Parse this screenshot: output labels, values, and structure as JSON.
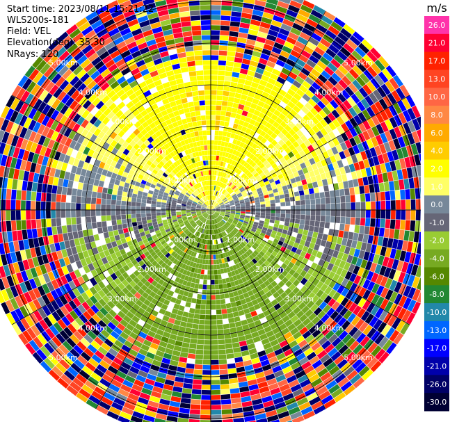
{
  "info": {
    "start_time": "Start time: 2023/08/11 15:21:22",
    "instrument": "WLS200s-181",
    "field": "Field: VEL",
    "elevation": "Elevation(deg): 35.30",
    "nrays": "NRays: 120"
  },
  "chart_data": {
    "type": "heatmap",
    "projection": "polar-ppi",
    "field": "VEL",
    "units": "m/s",
    "range_rings_km": [
      1.0,
      2.0,
      3.0,
      4.0,
      5.0
    ],
    "ring_labels": [
      "1.00km",
      "2.00km",
      "3.00km",
      "4.00km",
      "5.00km"
    ],
    "max_range_km": 5.5,
    "num_rays": 120,
    "colorbar": {
      "title": "m/s",
      "ticks": [
        "26.0",
        "21.0",
        "17.0",
        "13.0",
        "10.0",
        "8.0",
        "6.0",
        "4.0",
        "2.0",
        "1.0",
        "0.0",
        "-1.0",
        "-2.0",
        "-4.0",
        "-6.0",
        "-8.0",
        "-10.0",
        "-13.0",
        "-17.0",
        "-21.0",
        "-26.0",
        "-30.0"
      ],
      "colors": [
        "#ff33aa",
        "#ff0033",
        "#ff2200",
        "#ff4422",
        "#ff6644",
        "#ff8844",
        "#ffaa00",
        "#ffcc00",
        "#ffff00",
        "#ffff66",
        "#778899",
        "#666677",
        "#99cc33",
        "#77aa22",
        "#558800",
        "#228833",
        "#2288aa",
        "#0066ff",
        "#0000ff",
        "#0000aa",
        "#000066",
        "#000033"
      ]
    },
    "pattern": {
      "near_field": "positive velocities (yellow, +2 to +4 m/s) toward the north, near-zero (grey) band east-west, negative (green, -2 to -6 m/s) toward the south",
      "far_field": "noisy mixed colors beyond about 3.5 km"
    }
  }
}
